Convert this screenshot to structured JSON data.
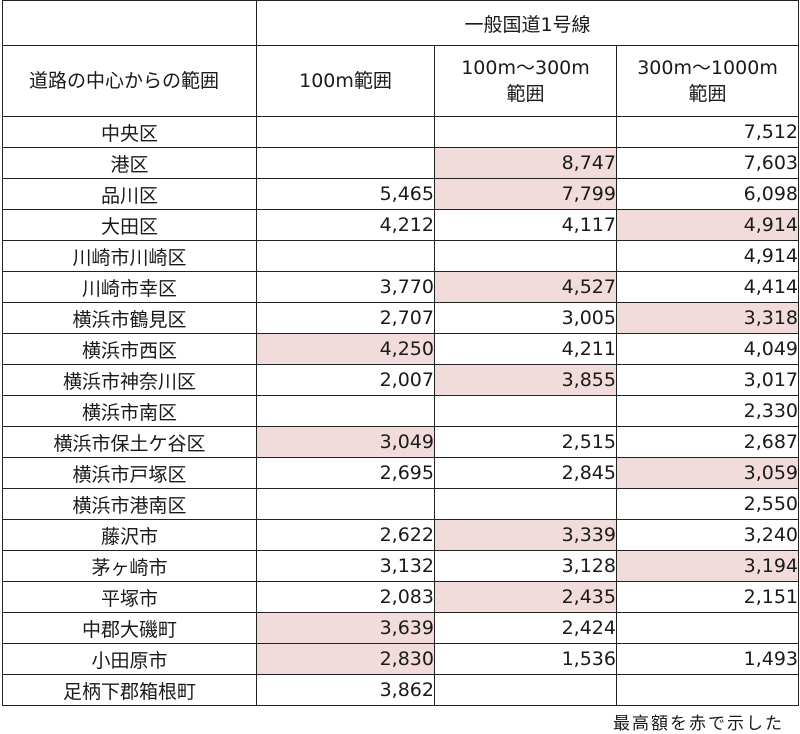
{
  "table": {
    "group_header": "一般国道1号線",
    "corner_label": "道路の中心からの範囲",
    "columns": [
      "100m範囲",
      "100m～300m\n範囲",
      "300m～1000m\n範囲"
    ],
    "highlight_color": "#f2dcdb",
    "rows": [
      {
        "district": "中央区",
        "values": [
          "",
          "",
          "7,512"
        ],
        "highlight": [
          false,
          false,
          false
        ]
      },
      {
        "district": "港区",
        "values": [
          "",
          "8,747",
          "7,603"
        ],
        "highlight": [
          false,
          true,
          false
        ]
      },
      {
        "district": "品川区",
        "values": [
          "5,465",
          "7,799",
          "6,098"
        ],
        "highlight": [
          false,
          true,
          false
        ]
      },
      {
        "district": "大田区",
        "values": [
          "4,212",
          "4,117",
          "4,914"
        ],
        "highlight": [
          false,
          false,
          true
        ]
      },
      {
        "district": "川崎市川崎区",
        "values": [
          "",
          "",
          "4,914"
        ],
        "highlight": [
          false,
          false,
          false
        ]
      },
      {
        "district": "川崎市幸区",
        "values": [
          "3,770",
          "4,527",
          "4,414"
        ],
        "highlight": [
          false,
          true,
          false
        ]
      },
      {
        "district": "横浜市鶴見区",
        "values": [
          "2,707",
          "3,005",
          "3,318"
        ],
        "highlight": [
          false,
          false,
          true
        ]
      },
      {
        "district": "横浜市西区",
        "values": [
          "4,250",
          "4,211",
          "4,049"
        ],
        "highlight": [
          true,
          false,
          false
        ]
      },
      {
        "district": "横浜市神奈川区",
        "values": [
          "2,007",
          "3,855",
          "3,017"
        ],
        "highlight": [
          false,
          true,
          false
        ]
      },
      {
        "district": "横浜市南区",
        "values": [
          "",
          "",
          "2,330"
        ],
        "highlight": [
          false,
          false,
          false
        ]
      },
      {
        "district": "横浜市保土ケ谷区",
        "values": [
          "3,049",
          "2,515",
          "2,687"
        ],
        "highlight": [
          true,
          false,
          false
        ]
      },
      {
        "district": "横浜市戸塚区",
        "values": [
          "2,695",
          "2,845",
          "3,059"
        ],
        "highlight": [
          false,
          false,
          true
        ]
      },
      {
        "district": "横浜市港南区",
        "values": [
          "",
          "",
          "2,550"
        ],
        "highlight": [
          false,
          false,
          false
        ]
      },
      {
        "district": "藤沢市",
        "values": [
          "2,622",
          "3,339",
          "3,240"
        ],
        "highlight": [
          false,
          true,
          false
        ]
      },
      {
        "district": "茅ヶ崎市",
        "values": [
          "3,132",
          "3,128",
          "3,194"
        ],
        "highlight": [
          false,
          false,
          true
        ]
      },
      {
        "district": "平塚市",
        "values": [
          "2,083",
          "2,435",
          "2,151"
        ],
        "highlight": [
          false,
          true,
          false
        ]
      },
      {
        "district": "中郡大磯町",
        "values": [
          "3,639",
          "2,424",
          ""
        ],
        "highlight": [
          true,
          false,
          false
        ]
      },
      {
        "district": "小田原市",
        "values": [
          "2,830",
          "1,536",
          "1,493"
        ],
        "highlight": [
          true,
          false,
          false
        ]
      },
      {
        "district": "足柄下郡箱根町",
        "values": [
          "3,862",
          "",
          ""
        ],
        "highlight": [
          false,
          false,
          false
        ]
      }
    ]
  },
  "footnote": "最高額を赤で示した"
}
